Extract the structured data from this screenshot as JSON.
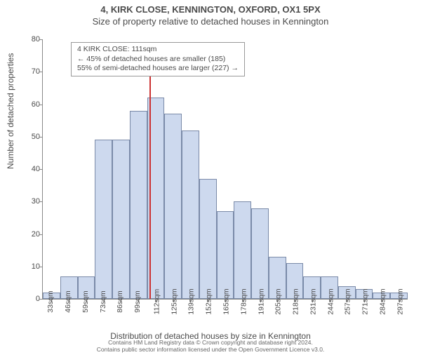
{
  "titles": {
    "main": "4, KIRK CLOSE, KENNINGTON, OXFORD, OX1 5PX",
    "sub": "Size of property relative to detached houses in Kennington"
  },
  "axes": {
    "ylabel": "Number of detached properties",
    "xlabel": "Distribution of detached houses by size in Kennington",
    "ymax": 80,
    "ytick_step": 10,
    "label_fontsize": 12,
    "tick_fontsize": 11
  },
  "chart": {
    "type": "histogram",
    "bar_color": "#cdd9ee",
    "bar_border": "#7a8aa8",
    "background_color": "#ffffff",
    "marker_color": "#cc3333",
    "info_border": "#999999",
    "xticks": [
      "33sqm",
      "46sqm",
      "59sqm",
      "73sqm",
      "86sqm",
      "99sqm",
      "112sqm",
      "125sqm",
      "139sqm",
      "152sqm",
      "165sqm",
      "178sqm",
      "191sqm",
      "205sqm",
      "218sqm",
      "231sqm",
      "244sqm",
      "257sqm",
      "271sqm",
      "284sqm",
      "297sqm"
    ],
    "values": [
      2,
      7,
      7,
      49,
      49,
      58,
      62,
      57,
      52,
      37,
      27,
      30,
      28,
      13,
      11,
      7,
      7,
      4,
      3,
      2,
      2
    ],
    "marker_x_ratio": 0.292,
    "marker_height_ratio": 0.875
  },
  "infobox": {
    "line1": "4 KIRK CLOSE: 111sqm",
    "line2": "← 45% of detached houses are smaller (185)",
    "line3": "55% of semi-detached houses are larger (227) →"
  },
  "footer": {
    "line1": "Contains HM Land Registry data © Crown copyright and database right 2024.",
    "line2": "Contains public sector information licensed under the Open Government Licence v3.0."
  }
}
